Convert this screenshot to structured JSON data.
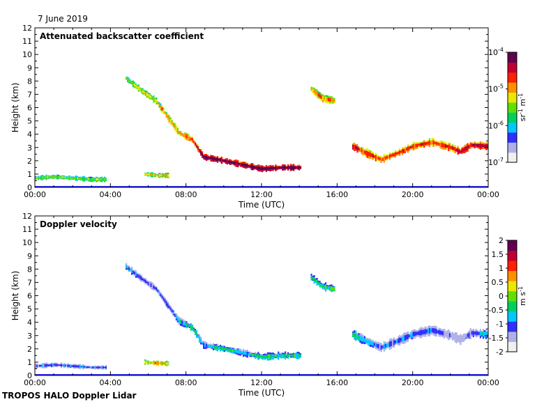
{
  "header": {
    "date": "7 June 2019",
    "credit": "TROPOS HALO Doppler Lidar"
  },
  "chart_data": [
    {
      "type": "heatmap",
      "title": "Attenuated backscatter coefficient",
      "xlabel": "Time (UTC)",
      "ylabel": "Height (km)",
      "x_ticks": [
        "00:00",
        "04:00",
        "08:00",
        "12:00",
        "16:00",
        "20:00",
        "00:00"
      ],
      "xlim_hours": [
        0,
        24
      ],
      "ylim": [
        0,
        12
      ],
      "y_ticks": [
        0,
        1,
        2,
        3,
        4,
        5,
        6,
        7,
        8,
        9,
        10,
        11,
        12
      ],
      "colorbar": {
        "scale": "log",
        "range": [
          1e-07,
          0.0001
        ],
        "tick_labels": [
          {
            "base": "10",
            "exp": "-4"
          },
          {
            "base": "10",
            "exp": "-5"
          },
          {
            "base": "10",
            "exp": "-6"
          },
          {
            "base": "10",
            "exp": "-7"
          }
        ],
        "unit": {
          "a": "sr",
          "a_exp": "-1",
          "b": "m",
          "b_exp": "-1"
        },
        "colors": [
          "#f0f0f0",
          "#b0b0e8",
          "#3030ff",
          "#00c8ff",
          "#00d060",
          "#60e000",
          "#e8e800",
          "#ff9000",
          "#ff2000",
          "#c00030",
          "#600050"
        ]
      },
      "features": [
        {
          "name": "descending layer",
          "points": [
            [
              4.8,
              8.2,
              5
            ],
            [
              5.6,
              7.3,
              6
            ],
            [
              6.4,
              6.5,
              6
            ],
            [
              7.0,
              5.3,
              7
            ],
            [
              7.6,
              4.1,
              7
            ],
            [
              8.3,
              3.6,
              8
            ],
            [
              8.9,
              2.3,
              10
            ],
            [
              10.0,
              2.0,
              10
            ],
            [
              11.0,
              1.7,
              10
            ],
            [
              12.0,
              1.4,
              10
            ],
            [
              13.0,
              1.5,
              10
            ],
            [
              14.1,
              1.5,
              10
            ]
          ],
          "thickness": 0.4
        },
        {
          "name": "upper fragment",
          "points": [
            [
              14.6,
              7.4,
              7
            ],
            [
              15.2,
              6.7,
              7
            ],
            [
              15.9,
              6.5,
              7
            ]
          ],
          "thickness": 0.5
        },
        {
          "name": "afternoon layer",
          "points": [
            [
              16.8,
              3.1,
              9
            ],
            [
              17.5,
              2.6,
              8
            ],
            [
              18.3,
              2.1,
              8
            ],
            [
              19.2,
              2.6,
              8
            ],
            [
              20.0,
              3.1,
              8
            ],
            [
              21.0,
              3.4,
              8
            ],
            [
              22.0,
              3.0,
              8
            ],
            [
              22.5,
              2.7,
              9
            ],
            [
              23.1,
              3.2,
              9
            ],
            [
              24.0,
              3.1,
              9
            ]
          ],
          "thickness": 0.5
        },
        {
          "name": "near-surface aerosol",
          "points": [
            [
              0.0,
              0.7,
              5
            ],
            [
              1.0,
              0.8,
              5
            ],
            [
              2.0,
              0.7,
              5
            ],
            [
              3.0,
              0.6,
              5
            ],
            [
              3.8,
              0.6,
              5
            ]
          ],
          "thickness": 0.3
        },
        {
          "name": "morning aerosol",
          "points": [
            [
              5.8,
              1.0,
              6
            ],
            [
              6.5,
              0.9,
              6
            ],
            [
              7.1,
              0.9,
              6
            ]
          ],
          "thickness": 0.3
        }
      ]
    },
    {
      "type": "heatmap",
      "title": "Doppler velocity",
      "xlabel": "Time (UTC)",
      "ylabel": "Height (km)",
      "x_ticks": [
        "00:00",
        "04:00",
        "08:00",
        "12:00",
        "16:00",
        "20:00",
        "00:00"
      ],
      "xlim_hours": [
        0,
        24
      ],
      "ylim": [
        0,
        12
      ],
      "y_ticks": [
        0,
        1,
        2,
        3,
        4,
        5,
        6,
        7,
        8,
        9,
        10,
        11,
        12
      ],
      "colorbar": {
        "scale": "linear",
        "range": [
          -2,
          2
        ],
        "tick_labels": [
          "2",
          "1.5",
          "1",
          "0.5",
          "0",
          "-0.5",
          "-1",
          "-1.5",
          "-2"
        ],
        "unit": {
          "a": "m",
          "a_exp": "",
          "b": "s",
          "b_exp": "-1"
        },
        "colors": [
          "#f0f0f0",
          "#b0b0e8",
          "#3030ff",
          "#00c8ff",
          "#00d060",
          "#60e000",
          "#e8e800",
          "#ff9000",
          "#ff2000",
          "#c00030",
          "#600050"
        ]
      },
      "features": [
        {
          "name": "descending layer",
          "points": [
            [
              4.8,
              8.2,
              3
            ],
            [
              5.6,
              7.3,
              2
            ],
            [
              6.4,
              6.5,
              2
            ],
            [
              7.0,
              5.3,
              2
            ],
            [
              7.6,
              4.1,
              3
            ],
            [
              8.3,
              3.6,
              4
            ],
            [
              8.9,
              2.3,
              3
            ],
            [
              10.0,
              2.0,
              4
            ],
            [
              11.0,
              1.7,
              3
            ],
            [
              12.0,
              1.4,
              4
            ],
            [
              13.0,
              1.5,
              4
            ],
            [
              14.1,
              1.5,
              4
            ]
          ],
          "thickness": 0.45
        },
        {
          "name": "upper fragment",
          "points": [
            [
              14.6,
              7.4,
              4
            ],
            [
              15.2,
              6.7,
              4
            ],
            [
              15.9,
              6.5,
              5
            ]
          ],
          "thickness": 0.5
        },
        {
          "name": "afternoon layer",
          "points": [
            [
              16.8,
              3.1,
              4
            ],
            [
              17.5,
              2.6,
              3
            ],
            [
              18.3,
              2.1,
              2
            ],
            [
              19.2,
              2.6,
              2
            ],
            [
              20.0,
              3.1,
              2
            ],
            [
              21.0,
              3.4,
              2
            ],
            [
              22.0,
              3.0,
              1
            ],
            [
              22.5,
              2.7,
              1
            ],
            [
              23.1,
              3.2,
              2
            ],
            [
              24.0,
              3.1,
              3
            ]
          ],
          "thickness": 0.6
        },
        {
          "name": "near-surface aerosol",
          "points": [
            [
              0.0,
              0.7,
              2
            ],
            [
              1.0,
              0.8,
              2
            ],
            [
              2.0,
              0.7,
              2
            ],
            [
              3.0,
              0.6,
              2
            ],
            [
              3.8,
              0.6,
              2
            ]
          ],
          "thickness": 0.3
        },
        {
          "name": "morning aerosol",
          "points": [
            [
              5.8,
              1.0,
              6
            ],
            [
              6.5,
              0.9,
              7
            ],
            [
              7.1,
              0.9,
              6
            ]
          ],
          "thickness": 0.3
        }
      ]
    }
  ]
}
